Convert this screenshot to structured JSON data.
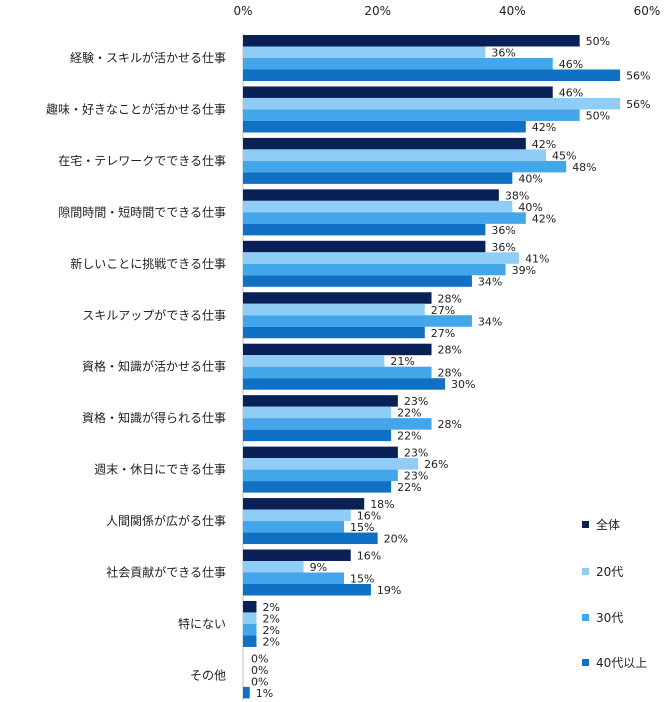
{
  "chart_data": {
    "type": "bar",
    "orientation": "horizontal",
    "xlim": [
      0,
      60
    ],
    "x_ticks": [
      "0%",
      "20%",
      "40%",
      "60%"
    ],
    "x_tick_values": [
      0,
      20,
      40,
      60
    ],
    "grid": false,
    "legend_position": "right",
    "categories": [
      "経験・スキルが活かせる仕事",
      "趣味・好きなことが活かせる仕事",
      "在宅・テレワークでできる仕事",
      "隙間時間・短時間でできる仕事",
      "新しいことに挑戦できる仕事",
      "スキルアップができる仕事",
      "資格・知識が活かせる仕事",
      "資格・知識が得られる仕事",
      "週末・休日にできる仕事",
      "人間関係が広がる仕事",
      "社会貢献ができる仕事",
      "特にない",
      "その他"
    ],
    "series": [
      {
        "name": "全体",
        "color": "#0a2157",
        "values": [
          50,
          46,
          42,
          38,
          36,
          28,
          28,
          23,
          23,
          18,
          16,
          2,
          0
        ]
      },
      {
        "name": "20代",
        "color": "#8fcdf6",
        "values": [
          36,
          56,
          45,
          40,
          41,
          27,
          21,
          22,
          26,
          16,
          9,
          2,
          0
        ]
      },
      {
        "name": "30代",
        "color": "#43a6ea",
        "values": [
          46,
          50,
          48,
          42,
          39,
          34,
          28,
          28,
          23,
          15,
          15,
          2,
          0
        ]
      },
      {
        "name": "40代以上",
        "color": "#1071c4",
        "values": [
          56,
          42,
          40,
          36,
          34,
          27,
          30,
          22,
          22,
          20,
          19,
          2,
          1
        ]
      }
    ],
    "value_suffix": "%"
  }
}
